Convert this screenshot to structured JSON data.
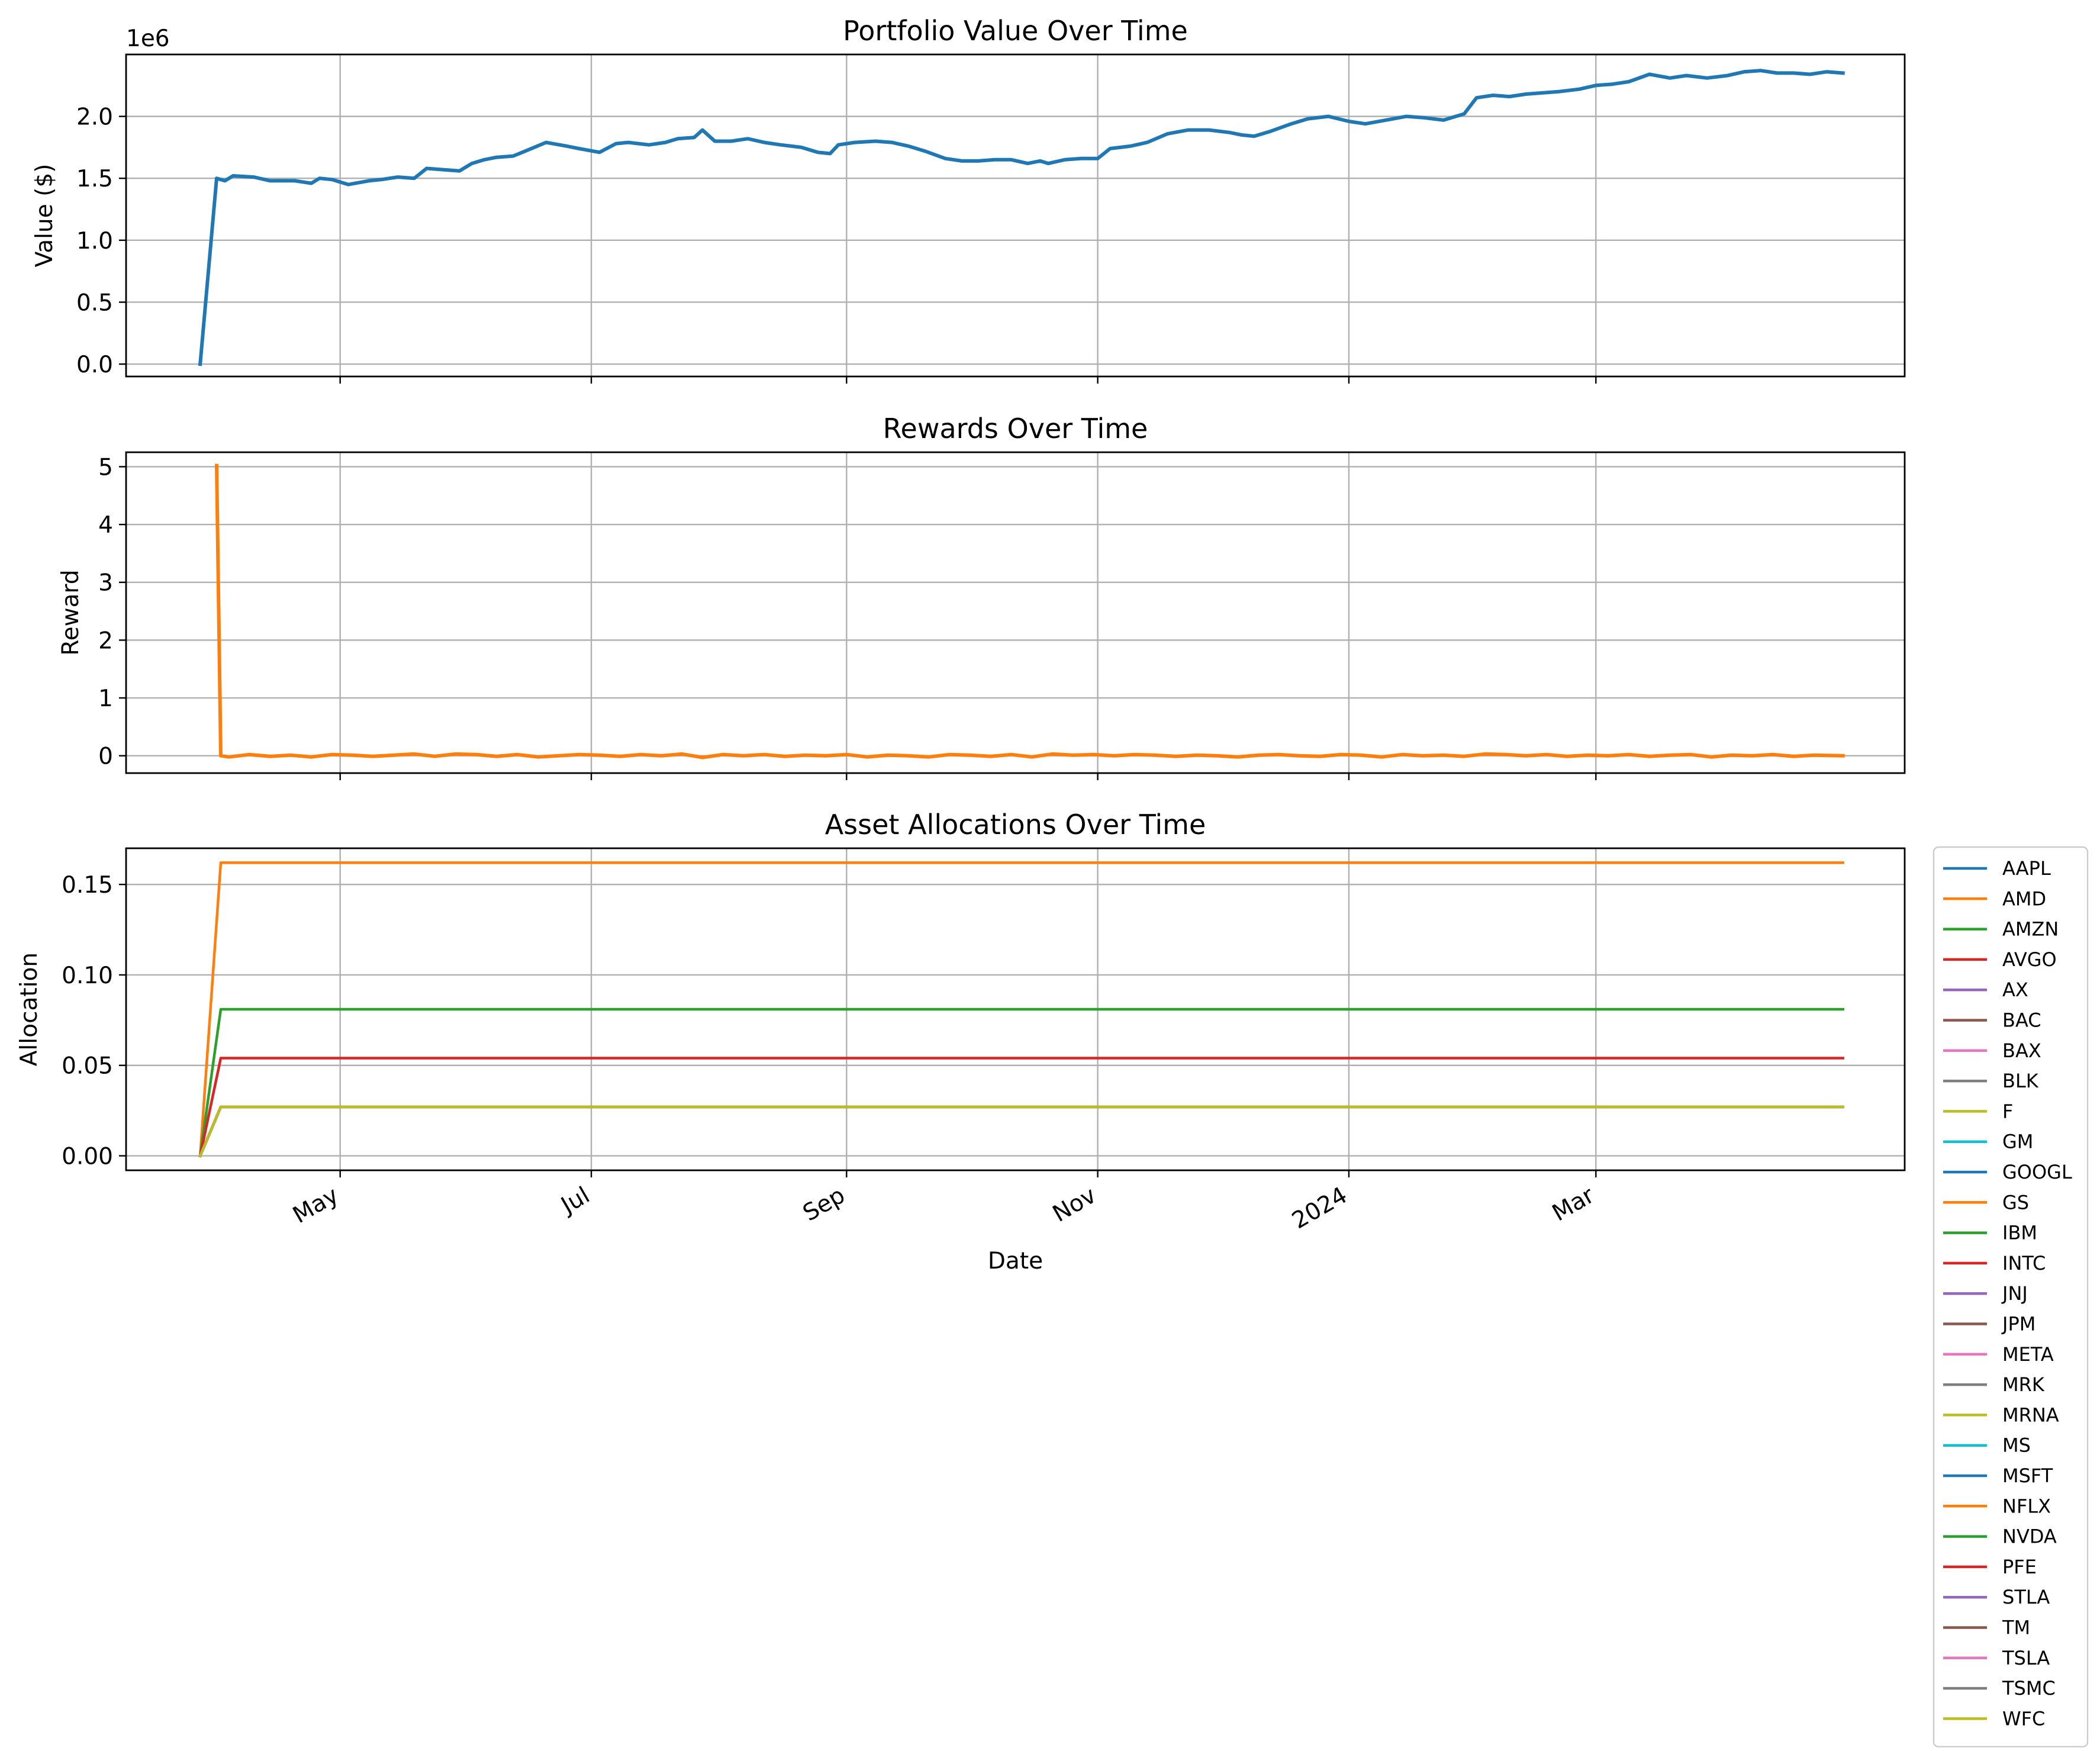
{
  "chart_data": [
    {
      "type": "line",
      "title": "Portfolio Value Over Time",
      "xlabel": "",
      "ylabel": "Value ($)",
      "y_offset_label": "1e6",
      "xlim": [
        "2023-03-10",
        "2024-05-15"
      ],
      "ylim": [
        -0.1,
        2.5
      ],
      "x_ticks": [
        {
          "date": "2023-05-01",
          "label": "May"
        },
        {
          "date": "2023-07-01",
          "label": "Jul"
        },
        {
          "date": "2023-09-01",
          "label": "Sep"
        },
        {
          "date": "2023-11-01",
          "label": "Nov"
        },
        {
          "date": "2024-01-01",
          "label": "2024"
        },
        {
          "date": "2024-03-01",
          "label": "Mar"
        }
      ],
      "x_ticklabels_shown": false,
      "y_ticks": [
        0.0,
        0.5,
        1.0,
        1.5,
        2.0
      ],
      "y_ticklabels": [
        "0.0",
        "0.5",
        "1.0",
        "1.5",
        "2.0"
      ],
      "grid": true,
      "series": [
        {
          "color": "#1f77b4",
          "x": [
            "2023-03-28",
            "2023-04-01",
            "2023-04-03",
            "2023-04-05",
            "2023-04-10",
            "2023-04-14",
            "2023-04-20",
            "2023-04-24",
            "2023-04-26",
            "2023-04-29",
            "2023-05-03",
            "2023-05-08",
            "2023-05-11",
            "2023-05-15",
            "2023-05-19",
            "2023-05-22",
            "2023-05-26",
            "2023-05-30",
            "2023-06-02",
            "2023-06-05",
            "2023-06-08",
            "2023-06-12",
            "2023-06-15",
            "2023-06-20",
            "2023-06-25",
            "2023-06-28",
            "2023-07-03",
            "2023-07-07",
            "2023-07-10",
            "2023-07-15",
            "2023-07-19",
            "2023-07-22",
            "2023-07-26",
            "2023-07-28",
            "2023-07-31",
            "2023-08-04",
            "2023-08-08",
            "2023-08-12",
            "2023-08-16",
            "2023-08-21",
            "2023-08-25",
            "2023-08-28",
            "2023-08-30",
            "2023-09-03",
            "2023-09-08",
            "2023-09-12",
            "2023-09-16",
            "2023-09-20",
            "2023-09-25",
            "2023-09-29",
            "2023-10-03",
            "2023-10-07",
            "2023-10-11",
            "2023-10-15",
            "2023-10-18",
            "2023-10-20",
            "2023-10-24",
            "2023-10-28",
            "2023-11-01",
            "2023-11-04",
            "2023-11-09",
            "2023-11-13",
            "2023-11-18",
            "2023-11-23",
            "2023-11-28",
            "2023-12-03",
            "2023-12-06",
            "2023-12-09",
            "2023-12-13",
            "2023-12-18",
            "2023-12-22",
            "2023-12-27",
            "2024-01-01",
            "2024-01-05",
            "2024-01-10",
            "2024-01-15",
            "2024-01-19",
            "2024-01-24",
            "2024-01-29",
            "2024-02-01",
            "2024-02-05",
            "2024-02-09",
            "2024-02-13",
            "2024-02-17",
            "2024-02-21",
            "2024-02-26",
            "2024-03-01",
            "2024-03-05",
            "2024-03-09",
            "2024-03-14",
            "2024-03-19",
            "2024-03-23",
            "2024-03-28",
            "2024-04-02",
            "2024-04-06",
            "2024-04-10",
            "2024-04-14",
            "2024-04-18",
            "2024-04-22",
            "2024-04-26",
            "2024-04-30"
          ],
          "values": [
            0.0,
            1.5,
            1.48,
            1.52,
            1.51,
            1.48,
            1.48,
            1.46,
            1.5,
            1.49,
            1.45,
            1.48,
            1.49,
            1.51,
            1.5,
            1.58,
            1.57,
            1.56,
            1.62,
            1.65,
            1.67,
            1.68,
            1.72,
            1.79,
            1.76,
            1.74,
            1.71,
            1.78,
            1.79,
            1.77,
            1.79,
            1.82,
            1.83,
            1.89,
            1.8,
            1.8,
            1.82,
            1.79,
            1.77,
            1.75,
            1.71,
            1.7,
            1.77,
            1.79,
            1.8,
            1.79,
            1.76,
            1.72,
            1.66,
            1.64,
            1.64,
            1.65,
            1.65,
            1.62,
            1.64,
            1.62,
            1.65,
            1.66,
            1.66,
            1.74,
            1.76,
            1.79,
            1.86,
            1.89,
            1.89,
            1.87,
            1.85,
            1.84,
            1.88,
            1.94,
            1.98,
            2.0,
            1.96,
            1.94,
            1.97,
            2.0,
            1.99,
            1.97,
            2.02,
            2.15,
            2.17,
            2.16,
            2.18,
            2.19,
            2.2,
            2.22,
            2.25,
            2.26,
            2.28,
            2.34,
            2.31,
            2.33,
            2.31,
            2.33,
            2.36,
            2.37,
            2.35,
            2.35,
            2.34,
            2.36,
            2.35
          ]
        }
      ]
    },
    {
      "type": "line",
      "title": "Rewards Over Time",
      "xlabel": "",
      "ylabel": "Reward",
      "xlim": [
        "2023-03-10",
        "2024-05-15"
      ],
      "ylim": [
        -0.3,
        5.25
      ],
      "x_ticks": [
        {
          "date": "2023-05-01",
          "label": "May"
        },
        {
          "date": "2023-07-01",
          "label": "Jul"
        },
        {
          "date": "2023-09-01",
          "label": "Sep"
        },
        {
          "date": "2023-11-01",
          "label": "Nov"
        },
        {
          "date": "2024-01-01",
          "label": "2024"
        },
        {
          "date": "2024-03-01",
          "label": "Mar"
        }
      ],
      "x_ticklabels_shown": false,
      "y_ticks": [
        0,
        1,
        2,
        3,
        4,
        5
      ],
      "y_ticklabels": [
        "0",
        "1",
        "2",
        "3",
        "4",
        "5"
      ],
      "grid": true,
      "series": [
        {
          "color": "#ff7f0e",
          "x": [
            "2023-04-01",
            "2023-04-02",
            "2023-04-04",
            "2023-04-09",
            "2023-04-14",
            "2023-04-19",
            "2023-04-24",
            "2023-04-29",
            "2023-05-04",
            "2023-05-09",
            "2023-05-14",
            "2023-05-19",
            "2023-05-24",
            "2023-05-29",
            "2023-06-03",
            "2023-06-08",
            "2023-06-13",
            "2023-06-18",
            "2023-06-23",
            "2023-06-28",
            "2023-07-03",
            "2023-07-08",
            "2023-07-13",
            "2023-07-18",
            "2023-07-23",
            "2023-07-28",
            "2023-08-02",
            "2023-08-07",
            "2023-08-12",
            "2023-08-17",
            "2023-08-22",
            "2023-08-27",
            "2023-09-01",
            "2023-09-06",
            "2023-09-11",
            "2023-09-16",
            "2023-09-21",
            "2023-09-26",
            "2023-10-01",
            "2023-10-06",
            "2023-10-11",
            "2023-10-16",
            "2023-10-21",
            "2023-10-26",
            "2023-10-31",
            "2023-11-05",
            "2023-11-10",
            "2023-11-15",
            "2023-11-20",
            "2023-11-25",
            "2023-11-30",
            "2023-12-05",
            "2023-12-10",
            "2023-12-15",
            "2023-12-20",
            "2023-12-25",
            "2023-12-30",
            "2024-01-04",
            "2024-01-09",
            "2024-01-14",
            "2024-01-19",
            "2024-01-24",
            "2024-01-29",
            "2024-02-03",
            "2024-02-08",
            "2024-02-13",
            "2024-02-18",
            "2024-02-23",
            "2024-02-28",
            "2024-03-04",
            "2024-03-09",
            "2024-03-14",
            "2024-03-19",
            "2024-03-24",
            "2024-03-29",
            "2024-04-03",
            "2024-04-08",
            "2024-04-13",
            "2024-04-18",
            "2024-04-23",
            "2024-04-30"
          ],
          "values": [
            5.02,
            0.0,
            -0.02,
            0.02,
            -0.01,
            0.01,
            -0.02,
            0.02,
            0.01,
            -0.01,
            0.01,
            0.03,
            -0.01,
            0.03,
            0.02,
            -0.01,
            0.02,
            -0.02,
            0.0,
            0.02,
            0.01,
            -0.01,
            0.02,
            0.0,
            0.03,
            -0.03,
            0.02,
            0.0,
            0.02,
            -0.01,
            0.01,
            0.0,
            0.02,
            -0.02,
            0.01,
            0.0,
            -0.02,
            0.02,
            0.01,
            -0.01,
            0.02,
            -0.02,
            0.03,
            0.01,
            0.02,
            0.0,
            0.02,
            0.01,
            -0.01,
            0.01,
            0.0,
            -0.02,
            0.01,
            0.02,
            0.0,
            -0.01,
            0.02,
            0.01,
            -0.02,
            0.02,
            0.0,
            0.01,
            -0.01,
            0.03,
            0.02,
            0.0,
            0.02,
            -0.01,
            0.01,
            0.0,
            0.02,
            -0.01,
            0.01,
            0.02,
            -0.02,
            0.01,
            0.0,
            0.02,
            -0.01,
            0.01,
            0.0
          ]
        }
      ]
    },
    {
      "type": "line",
      "title": "Asset Allocations Over Time",
      "xlabel": "Date",
      "ylabel": "Allocation",
      "xlim": [
        "2023-03-10",
        "2024-05-15"
      ],
      "ylim": [
        -0.008,
        0.17
      ],
      "x_ticks": [
        {
          "date": "2023-05-01",
          "label": "May"
        },
        {
          "date": "2023-07-01",
          "label": "Jul"
        },
        {
          "date": "2023-09-01",
          "label": "Sep"
        },
        {
          "date": "2023-11-01",
          "label": "Nov"
        },
        {
          "date": "2024-01-01",
          "label": "2024"
        },
        {
          "date": "2024-03-01",
          "label": "Mar"
        }
      ],
      "x_ticklabels_shown": true,
      "y_ticks": [
        0.0,
        0.05,
        0.1,
        0.15
      ],
      "y_ticklabels": [
        "0.00",
        "0.05",
        "0.10",
        "0.15"
      ],
      "grid": true,
      "legend_placement": "outside-right",
      "x": [
        "2023-03-28",
        "2023-04-02",
        "2024-04-30"
      ],
      "series": [
        {
          "name": "AAPL",
          "color": "#1f77b4",
          "values": [
            0.0,
            0.027,
            0.027
          ]
        },
        {
          "name": "AMD",
          "color": "#ff7f0e",
          "values": [
            0.0,
            0.162,
            0.162
          ]
        },
        {
          "name": "AMZN",
          "color": "#2ca02c",
          "values": [
            0.0,
            0.081,
            0.081
          ]
        },
        {
          "name": "AVGO",
          "color": "#d62728",
          "values": [
            0.0,
            0.054,
            0.054
          ]
        },
        {
          "name": "AX",
          "color": "#9467bd",
          "values": [
            0.0,
            0.027,
            0.027
          ]
        },
        {
          "name": "BAC",
          "color": "#8c564b",
          "values": [
            0.0,
            0.027,
            0.027
          ]
        },
        {
          "name": "BAX",
          "color": "#e377c2",
          "values": [
            0.0,
            0.027,
            0.027
          ]
        },
        {
          "name": "BLK",
          "color": "#7f7f7f",
          "values": [
            0.0,
            0.027,
            0.027
          ]
        },
        {
          "name": "F",
          "color": "#bcbd22",
          "values": [
            0.0,
            0.027,
            0.027
          ]
        },
        {
          "name": "GM",
          "color": "#17becf",
          "values": [
            0.0,
            0.027,
            0.027
          ]
        },
        {
          "name": "GOOGL",
          "color": "#1f77b4",
          "values": [
            0.0,
            0.027,
            0.027
          ]
        },
        {
          "name": "GS",
          "color": "#ff7f0e",
          "values": [
            0.0,
            0.027,
            0.027
          ]
        },
        {
          "name": "IBM",
          "color": "#2ca02c",
          "values": [
            0.0,
            0.027,
            0.027
          ]
        },
        {
          "name": "INTC",
          "color": "#d62728",
          "values": [
            0.0,
            0.027,
            0.027
          ]
        },
        {
          "name": "JNJ",
          "color": "#9467bd",
          "values": [
            0.0,
            0.027,
            0.027
          ]
        },
        {
          "name": "JPM",
          "color": "#8c564b",
          "values": [
            0.0,
            0.027,
            0.027
          ]
        },
        {
          "name": "META",
          "color": "#e377c2",
          "values": [
            0.0,
            0.027,
            0.027
          ]
        },
        {
          "name": "MRK",
          "color": "#7f7f7f",
          "values": [
            0.0,
            0.027,
            0.027
          ]
        },
        {
          "name": "MRNA",
          "color": "#bcbd22",
          "values": [
            0.0,
            0.027,
            0.027
          ]
        },
        {
          "name": "MS",
          "color": "#17becf",
          "values": [
            0.0,
            0.027,
            0.027
          ]
        },
        {
          "name": "MSFT",
          "color": "#1f77b4",
          "values": [
            0.0,
            0.027,
            0.027
          ]
        },
        {
          "name": "NFLX",
          "color": "#ff7f0e",
          "values": [
            0.0,
            0.027,
            0.027
          ]
        },
        {
          "name": "NVDA",
          "color": "#2ca02c",
          "values": [
            0.0,
            0.027,
            0.027
          ]
        },
        {
          "name": "PFE",
          "color": "#d62728",
          "values": [
            0.0,
            0.027,
            0.027
          ]
        },
        {
          "name": "STLA",
          "color": "#9467bd",
          "values": [
            0.0,
            0.027,
            0.027
          ]
        },
        {
          "name": "TM",
          "color": "#8c564b",
          "values": [
            0.0,
            0.027,
            0.027
          ]
        },
        {
          "name": "TSLA",
          "color": "#e377c2",
          "values": [
            0.0,
            0.027,
            0.027
          ]
        },
        {
          "name": "TSMC",
          "color": "#7f7f7f",
          "values": [
            0.0,
            0.027,
            0.027
          ]
        },
        {
          "name": "WFC",
          "color": "#bcbd22",
          "values": [
            0.0,
            0.027,
            0.027
          ]
        }
      ]
    }
  ]
}
